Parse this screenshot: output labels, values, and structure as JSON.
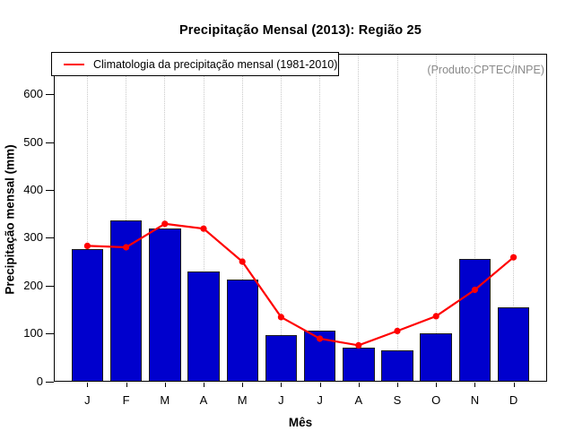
{
  "chart_data": {
    "type": "bar",
    "title": "Precipitação Mensal (2013): Região 25",
    "xlabel": "Mês",
    "ylabel": "Precipitação mensal (mm)",
    "categories": [
      "J",
      "F",
      "M",
      "A",
      "M",
      "J",
      "J",
      "A",
      "S",
      "O",
      "N",
      "D"
    ],
    "series": [
      {
        "name": "Precipitação Mensal (2013)",
        "type": "bar",
        "color": "#0000CD",
        "values": [
          277,
          338,
          321,
          231,
          214,
          97,
          106,
          71,
          65,
          102,
          257,
          156
        ]
      },
      {
        "name": "Climatologia da precipitação mensal (1981-2010)",
        "type": "line",
        "color": "#FF0000",
        "values": [
          283,
          280,
          329,
          319,
          250,
          134,
          89,
          75,
          105,
          136,
          191,
          259
        ]
      }
    ],
    "ylim": [
      0,
      685
    ],
    "yticks": [
      0,
      100,
      200,
      300,
      400,
      500,
      600
    ],
    "grid": "vertical dotted",
    "legend_position": "topleft",
    "annotation": "(Produto:CPTEC/INPE)"
  },
  "colors": {
    "bar_fill": "#0000CD",
    "bar_border": "#1A1A1A",
    "climatology_line": "#FF0000",
    "grid_line": "#C9C9C9",
    "annotation_text": "#8A8A8A",
    "axis": "#000000"
  }
}
